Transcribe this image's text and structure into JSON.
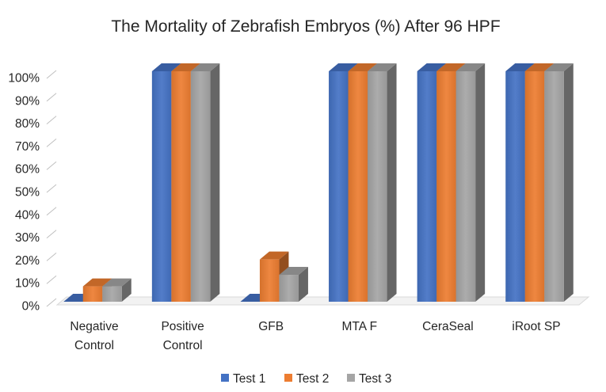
{
  "chart_data": {
    "type": "bar",
    "title": "The Mortality of Zebrafish Embryos (%) After 96 HPF",
    "categories": [
      [
        "Negative",
        "Control"
      ],
      [
        "Positive",
        "Control"
      ],
      [
        "GFB"
      ],
      [
        "MTA F"
      ],
      [
        "CeraSeal"
      ],
      [
        "iRoot SP"
      ]
    ],
    "series": [
      {
        "name": "Test 1",
        "values": [
          0,
          100,
          0,
          100,
          100,
          100
        ],
        "color": "#4472C4"
      },
      {
        "name": "Test 2",
        "values": [
          6.67,
          100,
          18.33,
          100,
          100,
          100
        ],
        "color": "#ED7D31"
      },
      {
        "name": "Test 3",
        "values": [
          6.67,
          100,
          11.67,
          100,
          100,
          100
        ],
        "color": "#A5A5A5"
      }
    ],
    "y_ticks": [
      "0%",
      "10%",
      "20%",
      "30%",
      "40%",
      "50%",
      "60%",
      "70%",
      "80%",
      "90%",
      "100%"
    ],
    "ylim": [
      0,
      100
    ],
    "grid": false,
    "legend_position": "bottom",
    "style": "3d-clustered-column"
  }
}
